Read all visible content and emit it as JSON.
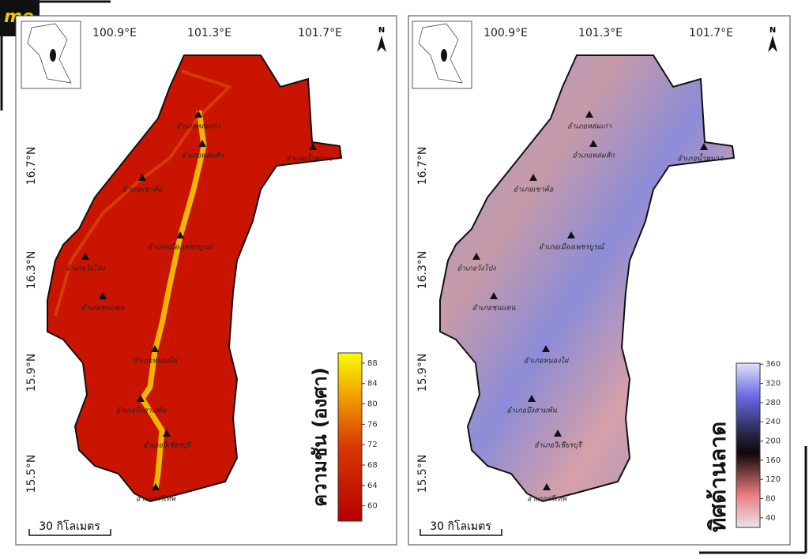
{
  "logo": "me",
  "lon_labels": [
    "100.9°E",
    "101.3°E",
    "101.7°E"
  ],
  "lat_labels": [
    "16.7°N",
    "16.3°N",
    "15.9°N",
    "15.5°N"
  ],
  "north": "N",
  "scale_bar": "30 กิโลเมตร",
  "districts": [
    "อำเภอหล่มเก่า",
    "อำเภอหล่มสัก",
    "อำเภอน้ำหนาว",
    "อำเภอเขาค้อ",
    "อำเภอเมืองเพชรบูรณ์",
    "อำเภอวังโป่ง",
    "อำเภอชนแดน",
    "อำเภอหนองไผ่",
    "อำเภอบึงสามพัน",
    "อำเภอวิเชียรบุรี",
    "อำเภอศรีเทพ"
  ],
  "maps": [
    {
      "legend": {
        "title": "ความชัน (องศา)",
        "lim": [
          57,
          90
        ],
        "ticks": [
          60,
          64,
          68,
          72,
          76,
          80,
          84,
          88
        ]
      }
    },
    {
      "legend": {
        "title": "ทิศด้านลาด",
        "lim": [
          20,
          362
        ],
        "ticks": [
          40,
          80,
          120,
          160,
          200,
          240,
          280,
          320,
          360
        ]
      }
    }
  ]
}
